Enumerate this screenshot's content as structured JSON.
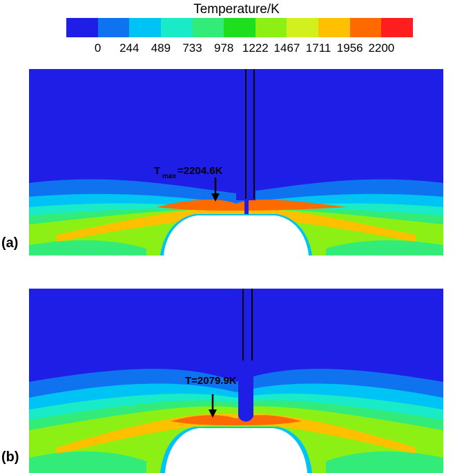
{
  "legend": {
    "title": "Temperature/K",
    "ticks": [
      "0",
      "244",
      "489",
      "733",
      "978",
      "1222",
      "1467",
      "1711",
      "1956",
      "2200"
    ],
    "colors": [
      "#1e1ee6",
      "#0f73f0",
      "#00c3f5",
      "#19ebc8",
      "#32eb78",
      "#1ede1e",
      "#8cf014",
      "#d2f01e",
      "#ffc000",
      "#ff6a00",
      "#ff1e1e"
    ]
  },
  "panels": [
    {
      "label": "(a)",
      "annotation_prefix": "T",
      "annotation_sub": "max",
      "annotation_value": "=2204.6K"
    },
    {
      "label": "(b)",
      "annotation_text": "T=2079.9K"
    }
  ]
}
